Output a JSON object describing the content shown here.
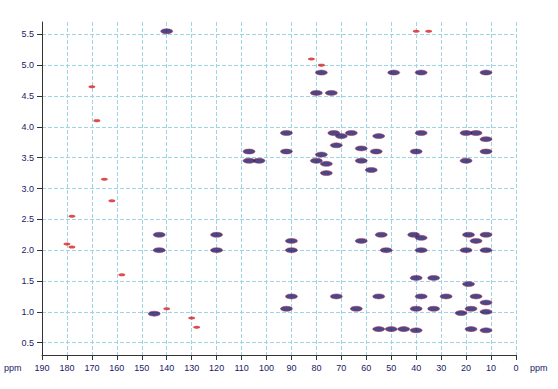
{
  "chart_data": {
    "type": "scatter",
    "x_label": "ppm",
    "y_label": "ppm",
    "xlim": [
      190,
      0
    ],
    "xticks": [
      190,
      180,
      170,
      160,
      150,
      140,
      130,
      120,
      110,
      100,
      90,
      80,
      70,
      60,
      50,
      40,
      30,
      20,
      10,
      0
    ],
    "ylim": [
      0.3,
      5.7
    ],
    "yticks": [
      0.5,
      {
        "value": 1,
        "label": "1.0"
      },
      1.5,
      {
        "value": 2,
        "label": "2.0"
      },
      2.5,
      {
        "value": 3,
        "label": "3.0"
      },
      3.5,
      {
        "value": 4,
        "label": "4.0"
      },
      4.5,
      {
        "value": 5,
        "label": "5.0"
      },
      5.5
    ],
    "grid": true,
    "marker": "ellipse",
    "series": [
      {
        "color": "#1c1c6b",
        "x": [
          140,
          78,
          49,
          38,
          12,
          74,
          80,
          92,
          73,
          70,
          66,
          55,
          38,
          20,
          16,
          12,
          107,
          92,
          78,
          72,
          62,
          56,
          40,
          12,
          107,
          103,
          80,
          76,
          62,
          20,
          76,
          58,
          143,
          120,
          90,
          54,
          41,
          38,
          19,
          12,
          143,
          120,
          90,
          62,
          52,
          38,
          20,
          12,
          16,
          40,
          33,
          19,
          90,
          72,
          55,
          38,
          28,
          16,
          12,
          145,
          92,
          64,
          40,
          33,
          18,
          12,
          22,
          55,
          50,
          45,
          40,
          18,
          12
        ],
        "y": [
          5.55,
          4.88,
          4.88,
          4.88,
          4.88,
          4.55,
          4.55,
          3.9,
          3.9,
          3.85,
          3.9,
          3.85,
          3.9,
          3.9,
          3.9,
          3.8,
          3.6,
          3.6,
          3.55,
          3.7,
          3.65,
          3.6,
          3.6,
          3.6,
          3.45,
          3.45,
          3.45,
          3.4,
          3.45,
          3.45,
          3.25,
          3.3,
          2.25,
          2.25,
          2.15,
          2.25,
          2.25,
          2.2,
          2.25,
          2.25,
          2.0,
          2.0,
          2.0,
          2.15,
          2.0,
          2.0,
          2.0,
          2.0,
          2.15,
          1.55,
          1.55,
          1.45,
          1.25,
          1.25,
          1.25,
          1.25,
          1.25,
          1.25,
          1.15,
          0.97,
          1.05,
          1.05,
          1.05,
          1.05,
          1.05,
          1.0,
          0.98,
          0.72,
          0.72,
          0.72,
          0.7,
          0.72,
          0.7
        ]
      },
      {
        "color": "#d62020",
        "x": [
          40,
          35,
          82,
          78,
          178,
          180,
          178,
          165,
          168,
          162,
          158,
          130,
          128,
          140,
          170
        ],
        "y": [
          5.55,
          5.55,
          5.1,
          5.0,
          2.55,
          2.1,
          2.05,
          3.15,
          4.1,
          2.8,
          1.6,
          0.9,
          0.75,
          1.05,
          4.65
        ]
      }
    ]
  }
}
